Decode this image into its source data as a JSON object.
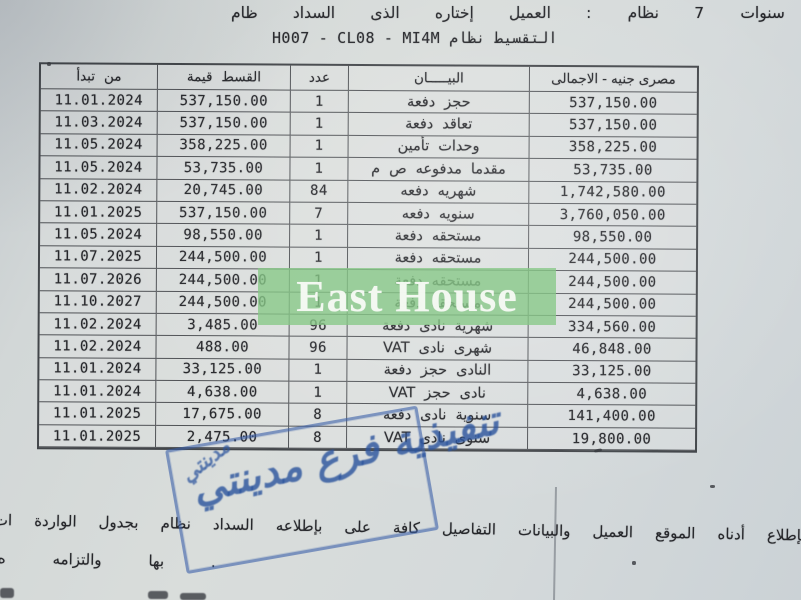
{
  "header": {
    "line1": "ظام السداد الذى إختاره العميل : نظام 7 سنوات",
    "line2": "H007 - CL08 - MI4M نظام التقسيط"
  },
  "table": {
    "headers": {
      "start_date": "تبدأ من",
      "amount": "قيمة القسط",
      "count": "عدد",
      "description": "البيـــــان",
      "total": "الاجمالى - جنيه مصرى"
    },
    "rows": [
      {
        "date": "11.01.2024",
        "amount": "537,150.00",
        "count": "1",
        "desc": "دفعة حجز",
        "total": "537,150.00"
      },
      {
        "date": "11.03.2024",
        "amount": "537,150.00",
        "count": "1",
        "desc": "دفعة تعاقد",
        "total": "537,150.00"
      },
      {
        "date": "11.05.2024",
        "amount": "358,225.00",
        "count": "1",
        "desc": "تأمين وحدات",
        "total": "358,225.00"
      },
      {
        "date": "11.05.2024",
        "amount": "53,735.00",
        "count": "1",
        "desc": "م ص مدفوعه مقدما",
        "total": "53,735.00"
      },
      {
        "date": "11.02.2024",
        "amount": "20,745.00",
        "count": "84",
        "desc": "دفعه شهريه",
        "total": "1,742,580.00"
      },
      {
        "date": "11.01.2025",
        "amount": "537,150.00",
        "count": "7",
        "desc": "دفعه سنويه",
        "total": "3,760,050.00"
      },
      {
        "date": "11.05.2024",
        "amount": "98,550.00",
        "count": "1",
        "desc": "دفعة مستحقه",
        "total": "98,550.00"
      },
      {
        "date": "11.07.2025",
        "amount": "244,500.00",
        "count": "1",
        "desc": "دفعة مستحقه",
        "total": "244,500.00"
      },
      {
        "date": "11.07.2026",
        "amount": "244,500.00",
        "count": "1",
        "desc": "دفعة مستحقه",
        "total": "244,500.00"
      },
      {
        "date": "11.10.2027",
        "amount": "244,500.00",
        "count": "1",
        "desc": "دفعة مستحقه",
        "total": "244,500.00"
      },
      {
        "date": "11.02.2024",
        "amount": "3,485.00",
        "count": "96",
        "desc": "دفعة نادى شهرية",
        "total": "334,560.00"
      },
      {
        "date": "11.02.2024",
        "amount": "488.00",
        "count": "96",
        "desc": "VAT نادى شهرى",
        "total": "46,848.00"
      },
      {
        "date": "11.01.2024",
        "amount": "33,125.00",
        "count": "1",
        "desc": "دفعة حجز النادى",
        "total": "33,125.00"
      },
      {
        "date": "11.01.2024",
        "amount": "4,638.00",
        "count": "1",
        "desc": "VAT حجز نادى",
        "total": "4,638.00"
      },
      {
        "date": "11.01.2025",
        "amount": "17,675.00",
        "count": "8",
        "desc": "دفعه نادى سنوية",
        "total": "141,400.00"
      },
      {
        "date": "11.01.2025",
        "amount": "2,475.00",
        "count": "8",
        "desc": "VAT نادى سنوى",
        "total": "19,800.00"
      }
    ]
  },
  "watermark": {
    "text": "East House",
    "background": "#87c886",
    "text_color": "#f6f9f3"
  },
  "stamp": {
    "script": "تنفيذية فرع مدينتي",
    "corner_script": "مدينتي",
    "ink_color": "#3a5fa8"
  },
  "footer": {
    "line1": "ات الواردة بجدول نظام السداد بإطلاعه على كافة التفاصيل والبيانات العميل الموقع أدناه بإطلاع",
    "line2": "ه والتزامه بها ."
  }
}
